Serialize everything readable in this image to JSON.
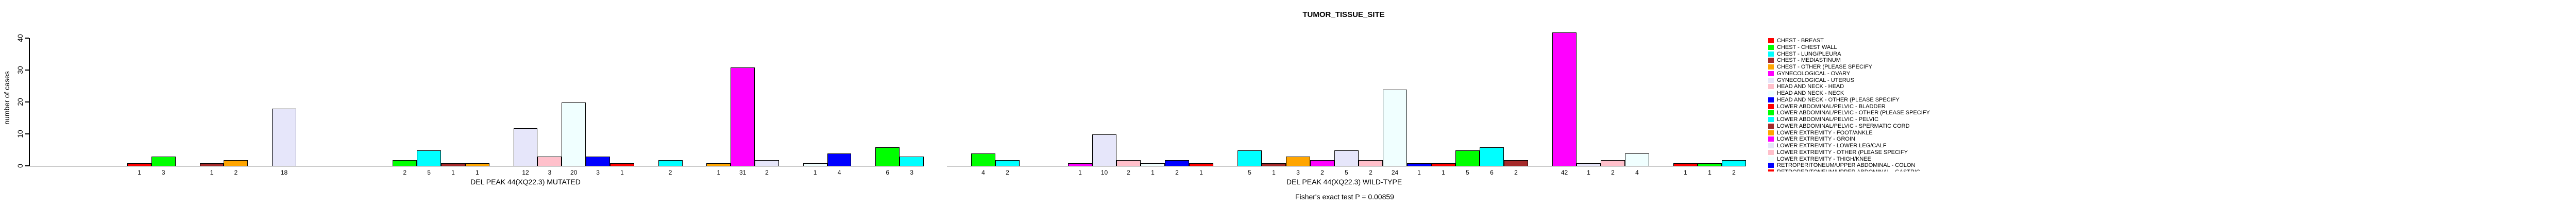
{
  "chart_data": {
    "type": "bar",
    "title": "TUMOR_TISSUE_SITE",
    "ylabel": "number of cases",
    "ylim": [
      0,
      40
    ],
    "yticks": [
      0,
      10,
      20,
      30,
      40
    ],
    "grid": false,
    "legend_position": "right",
    "footnote": "Fisher's exact test P = 0.00859",
    "color_cycle": [
      "#FF0000",
      "#00FF00",
      "#00FFFF",
      "#A52A2A",
      "#FFA500",
      "#FF00FF",
      "#E6E6FA",
      "#FFC0CB",
      "#F0FFFF",
      "#0000FF"
    ],
    "bar_value_labels_shown": true,
    "panels": [
      {
        "xlabel": "DEL PEAK 44(XQ22.3) MUTATED",
        "values": [
          1,
          3,
          0,
          1,
          2,
          0,
          18,
          0,
          0,
          0,
          0,
          2,
          5,
          1,
          1,
          0,
          12,
          3,
          20,
          3,
          1,
          0,
          2,
          0,
          1,
          31,
          2,
          0,
          1,
          4,
          0,
          6,
          3
        ]
      },
      {
        "xlabel": "DEL PEAK 44(XQ22.3) WILD-TYPE",
        "values": [
          0,
          4,
          2,
          0,
          0,
          1,
          10,
          2,
          1,
          2,
          1,
          0,
          5,
          1,
          3,
          2,
          5,
          2,
          24,
          1,
          1,
          5,
          6,
          2,
          0,
          42,
          1,
          2,
          4,
          0,
          1,
          1,
          2
        ]
      }
    ],
    "legend_entries": [
      {
        "label": "CHEST - BREAST",
        "color": "#FF0000",
        "clipped": false
      },
      {
        "label": "CHEST - CHEST WALL",
        "color": "#00FF00",
        "clipped": false
      },
      {
        "label": "CHEST - LUNG/PLEURA",
        "color": "#00FFFF",
        "clipped": false
      },
      {
        "label": "CHEST - MEDIASTINUM",
        "color": "#A52A2A",
        "clipped": false
      },
      {
        "label": "CHEST - OTHER (PLEASE SPECIFY",
        "color": "#FFA500",
        "clipped": false
      },
      {
        "label": "GYNECOLOGICAL - OVARY",
        "color": "#FF00FF",
        "clipped": false
      },
      {
        "label": "GYNECOLOGICAL - UTERUS",
        "color": "#E6E6FA",
        "clipped": false
      },
      {
        "label": "HEAD AND NECK - HEAD",
        "color": "#FFC0CB",
        "clipped": false
      },
      {
        "label": "HEAD AND NECK - NECK",
        "color": "#F0FFFF",
        "clipped": false
      },
      {
        "label": "HEAD AND NECK - OTHER (PLEASE SPECIFY",
        "color": "#0000FF",
        "clipped": false
      },
      {
        "label": "LOWER ABDOMINAL/PELVIC - BLADDER",
        "color": "#FF0000",
        "clipped": false
      },
      {
        "label": "LOWER ABDOMINAL/PELVIC - OTHER (PLEASE SPECIFY",
        "color": "#00FF00",
        "clipped": false
      },
      {
        "label": "LOWER ABDOMINAL/PELVIC - PELVIC",
        "color": "#00FFFF",
        "clipped": false
      },
      {
        "label": "LOWER ABDOMINAL/PELVIC - SPERMATIC CORD",
        "color": "#A52A2A",
        "clipped": false
      },
      {
        "label": "LOWER EXTREMITY - FOOT/ANKLE",
        "color": "#FFA500",
        "clipped": false
      },
      {
        "label": "LOWER EXTREMITY - GROIN",
        "color": "#FF00FF",
        "clipped": false
      },
      {
        "label": "LOWER EXTREMITY - LOWER LEG/CALF",
        "color": "#E6E6FA",
        "clipped": false
      },
      {
        "label": "LOWER EXTREMITY - OTHER (PLEASE SPECIFY",
        "color": "#FFC0CB",
        "clipped": false
      },
      {
        "label": "LOWER EXTREMITY - THIGH/KNEE",
        "color": "#F0FFFF",
        "clipped": false
      },
      {
        "label": "RETROPERITONEUM/UPPER ABDOMINAL - COLON",
        "color": "#0000FF",
        "clipped": false
      },
      {
        "label": "RETROPERITONEUM/UPPER ABDOMINAL - GASTRIC",
        "color": "#FF0000",
        "clipped": true
      }
    ]
  }
}
